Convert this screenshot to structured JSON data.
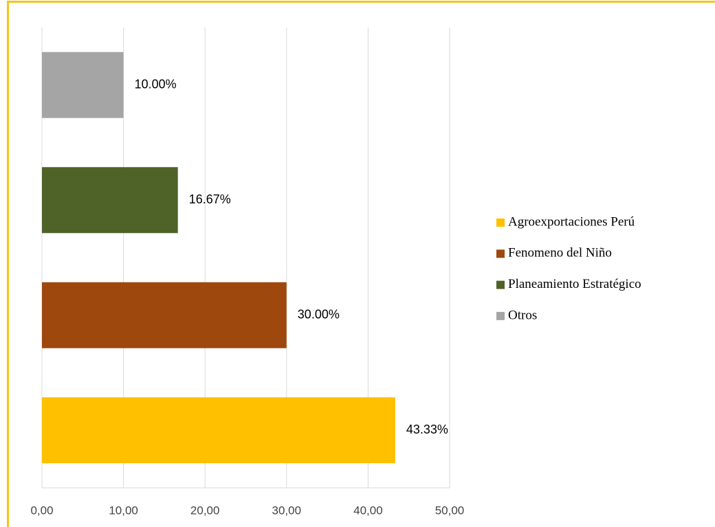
{
  "chart_data": {
    "type": "bar",
    "orientation": "horizontal",
    "categories": [
      "Agroexportaciones Perú",
      "Fenomeno del Niño",
      "Planeamiento Estratégico",
      "Otros"
    ],
    "values": [
      43.33,
      30.0,
      16.67,
      10.0
    ],
    "value_labels": [
      "43.33%",
      "30.00%",
      "16.67%",
      "10.00%"
    ],
    "colors": [
      "#ffc000",
      "#9e480e",
      "#4f6228",
      "#a5a5a5"
    ],
    "xlim": [
      0,
      50
    ],
    "xticks": [
      {
        "value": 0,
        "label": "0,00"
      },
      {
        "value": 10,
        "label": "10,00"
      },
      {
        "value": 20,
        "label": "20,00"
      },
      {
        "value": 30,
        "label": "30,00"
      },
      {
        "value": 40,
        "label": "40,00"
      },
      {
        "value": 50,
        "label": "50,00"
      }
    ],
    "grid": true,
    "legend": "right"
  }
}
